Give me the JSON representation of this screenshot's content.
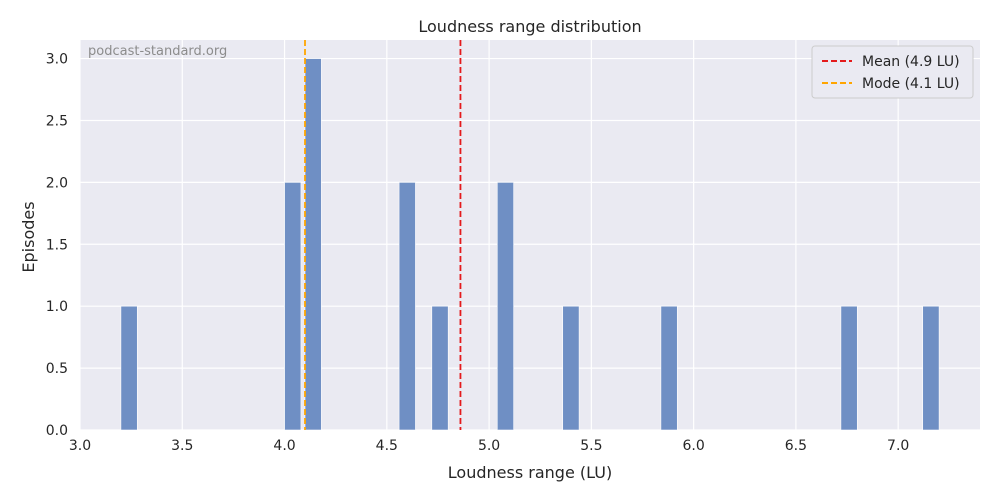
{
  "chart_data": {
    "type": "bar",
    "title": "Loudness range distribution",
    "xlabel": "Loudness range (LU)",
    "ylabel": "Episodes",
    "watermark": "podcast-standard.org",
    "xlim": [
      3.0,
      7.4
    ],
    "ylim": [
      0,
      3.15
    ],
    "xticks": [
      "3.0",
      "3.5",
      "4.0",
      "4.5",
      "5.0",
      "5.5",
      "6.0",
      "6.5",
      "7.0"
    ],
    "yticks": [
      "0.0",
      "0.5",
      "1.0",
      "1.5",
      "2.0",
      "2.5",
      "3.0"
    ],
    "bin_width": 0.08,
    "bins": [
      {
        "x": 3.2,
        "count": 1
      },
      {
        "x": 4.0,
        "count": 2
      },
      {
        "x": 4.1,
        "count": 3
      },
      {
        "x": 4.56,
        "count": 2
      },
      {
        "x": 4.72,
        "count": 1
      },
      {
        "x": 5.04,
        "count": 2
      },
      {
        "x": 5.36,
        "count": 1
      },
      {
        "x": 5.84,
        "count": 1
      },
      {
        "x": 6.72,
        "count": 1
      },
      {
        "x": 7.12,
        "count": 1
      }
    ],
    "reference_lines": [
      {
        "label": "Mean (4.9 LU)",
        "value": 4.86,
        "color": "#e41a1c",
        "style": "dashed"
      },
      {
        "label": "Mode (4.1 LU)",
        "value": 4.1,
        "color": "#ffa500",
        "style": "dashed"
      }
    ],
    "bar_color": "#6f8fc4",
    "background_color": "#eaeaf2",
    "grid": true,
    "legend_position": "top-right"
  }
}
